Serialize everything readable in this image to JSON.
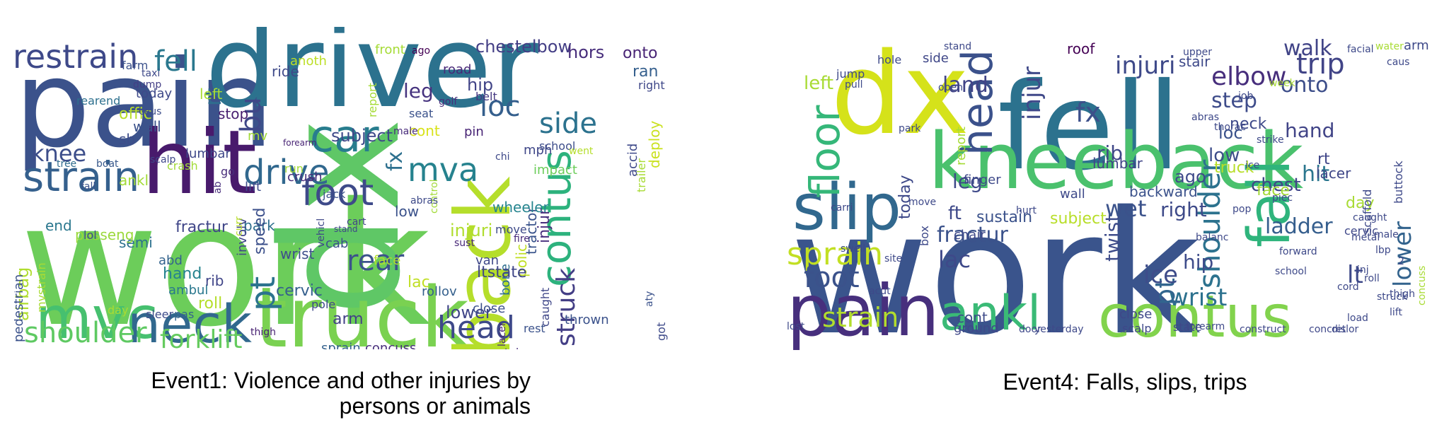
{
  "panels": [
    {
      "caption_line1": "Event1: Violence and other injuries by",
      "caption_line2": "persons or animals",
      "words": [
        {
          "t": "work",
          "c": "#6ccd5a"
        },
        {
          "t": "dx",
          "c": "#5fc766"
        },
        {
          "t": "pain",
          "c": "#3b528b"
        },
        {
          "t": "driver",
          "c": "#2c728e"
        },
        {
          "t": "hit",
          "c": "#481a6c"
        },
        {
          "t": "truck",
          "c": "#7ad151"
        },
        {
          "t": "back",
          "c": "#b5de2b"
        },
        {
          "t": "mvc",
          "c": "#46c06f"
        },
        {
          "t": "neck",
          "c": "#31688e"
        },
        {
          "t": "strain",
          "c": "#35608d"
        },
        {
          "t": "car",
          "c": "#287d8e"
        },
        {
          "t": "contus",
          "c": "#2db27d"
        },
        {
          "t": "restrain",
          "c": "#3e4989"
        },
        {
          "t": "fell",
          "c": "#2a788e"
        },
        {
          "t": "drive",
          "c": "#31688e"
        },
        {
          "t": "foot",
          "c": "#3e4a89"
        },
        {
          "t": "mva",
          "c": "#26828e"
        },
        {
          "t": "loc",
          "c": "#355f8d"
        },
        {
          "t": "side",
          "c": "#2c728e"
        },
        {
          "t": "head",
          "c": "#3e4989"
        },
        {
          "t": "shoulder",
          "c": "#5ec962"
        },
        {
          "t": "forklift",
          "c": "#65cb5e"
        },
        {
          "t": "pt",
          "c": "#2c738e"
        },
        {
          "t": "rear",
          "c": "#3b528b"
        },
        {
          "t": "struck",
          "c": "#433e85"
        },
        {
          "t": "knee",
          "c": "#3d4e8a"
        },
        {
          "t": "bu",
          "c": "#3f4788"
        },
        {
          "t": "rt",
          "c": "#2f6c8e"
        },
        {
          "t": "fx",
          "c": "#2d708e"
        },
        {
          "t": "leg",
          "c": "#46337f"
        },
        {
          "t": "hip",
          "c": "#414487"
        },
        {
          "t": "chestelbow",
          "c": "#433e85"
        },
        {
          "t": "hors",
          "c": "#472d7b"
        },
        {
          "t": "onto",
          "c": "#482475"
        },
        {
          "t": "front",
          "c": "#a5db36"
        },
        {
          "t": "ride",
          "c": "#3e4989"
        },
        {
          "t": "anoth",
          "c": "#bddf26"
        },
        {
          "t": "offic",
          "c": "#b8de29"
        },
        {
          "t": "wall",
          "c": "#3b528b"
        },
        {
          "t": "stop",
          "c": "#481f70"
        },
        {
          "t": "sb",
          "c": "#3d4d8a"
        },
        {
          "t": "mv",
          "c": "#a2da37"
        },
        {
          "t": "left",
          "c": "#a8db34"
        },
        {
          "t": "subject",
          "c": "#3e4989"
        },
        {
          "t": "cont",
          "c": "#d8e219"
        },
        {
          "t": "ankl",
          "c": "#a2da37"
        },
        {
          "t": "lumbar",
          "c": "#3f4889"
        },
        {
          "t": "fractur",
          "c": "#404688"
        },
        {
          "t": "park",
          "c": "#2e6f8e"
        },
        {
          "t": "semi",
          "c": "#2d718e"
        },
        {
          "t": "end",
          "c": "#2a778e"
        },
        {
          "t": "passeng",
          "c": "#9bd93c"
        },
        {
          "t": "injuri",
          "c": "#b0dd2f"
        },
        {
          "t": "low",
          "c": "#3b528b"
        },
        {
          "t": "lac",
          "c": "#c0df25"
        },
        {
          "t": "face",
          "c": "#b2dd2d"
        },
        {
          "t": "tractor",
          "c": "#3a548c"
        },
        {
          "t": "speed",
          "c": "#3c508b"
        },
        {
          "t": "wrist",
          "c": "#3d4e8a"
        },
        {
          "t": "cervic",
          "c": "#355f8d"
        },
        {
          "t": "arm",
          "c": "#424186"
        },
        {
          "t": "roll",
          "c": "#b5de2b"
        },
        {
          "t": "hand",
          "c": "#25838e"
        },
        {
          "t": "abd",
          "c": "#33638d"
        },
        {
          "t": "ambul",
          "c": "#2a788e"
        },
        {
          "t": "rib",
          "c": "#404588"
        },
        {
          "t": "lower",
          "c": "#404588"
        },
        {
          "t": "polic",
          "c": "#c0df25"
        },
        {
          "t": "sprain",
          "c": "#34618d"
        },
        {
          "t": "concuss",
          "c": "#472d7b"
        },
        {
          "t": "sustain",
          "c": "#472e7c"
        },
        {
          "t": "lacer",
          "c": "#482878"
        },
        {
          "t": "injur",
          "c": "#472f7d"
        },
        {
          "t": "thrown",
          "c": "#3b528b"
        },
        {
          "t": "bone",
          "c": "#2e6e8e"
        },
        {
          "t": "close",
          "c": "#3c4f8a"
        },
        {
          "t": "ltstate",
          "c": "#404688"
        },
        {
          "t": "van",
          "c": "#3f4889"
        },
        {
          "t": "airbag",
          "c": "#b0dd2f"
        },
        {
          "t": "deploy",
          "c": "#cae11f"
        },
        {
          "t": "ran",
          "c": "#355f8d"
        },
        {
          "t": "right",
          "c": "#3f4889"
        },
        {
          "t": "road",
          "c": "#482878"
        },
        {
          "t": "belt",
          "c": "#453882"
        },
        {
          "t": "pin",
          "c": "#482475"
        },
        {
          "t": "mph",
          "c": "#3f4788"
        },
        {
          "t": "school",
          "c": "#3d4d8a"
        },
        {
          "t": "impact",
          "c": "#6ccd5a"
        },
        {
          "t": "wheeler",
          "c": "#25848e"
        },
        {
          "t": "move",
          "c": "#3e4a89"
        },
        {
          "t": "fire",
          "c": "#472a7a"
        },
        {
          "t": "sust",
          "c": "#482878"
        },
        {
          "t": "lol",
          "c": "#3f4788"
        },
        {
          "t": "day",
          "c": "#a8db34"
        },
        {
          "t": "rollov",
          "c": "#35608d"
        },
        {
          "t": "pole",
          "c": "#3e4989"
        },
        {
          "t": "thigh",
          "c": "#482173"
        },
        {
          "t": "land",
          "c": "#b5de2b"
        },
        {
          "t": "cab",
          "c": "#3b528b"
        },
        {
          "t": "crash",
          "c": "#a2da37"
        },
        {
          "t": "go",
          "c": "#472c7a"
        },
        {
          "t": "lift",
          "c": "#3e4c8a"
        },
        {
          "t": "run",
          "c": "#a5db36"
        },
        {
          "t": "crush",
          "c": "#472d7b"
        },
        {
          "t": "vehicl",
          "c": "#3f4788"
        },
        {
          "t": "today",
          "c": "#3e4989"
        },
        {
          "t": "farm",
          "c": "#3b518b"
        },
        {
          "t": "taxi",
          "c": "#3e4989"
        },
        {
          "t": "dump",
          "c": "#433e85"
        },
        {
          "t": "caus",
          "c": "#3d4e8a"
        },
        {
          "t": "seat",
          "c": "#3b528b"
        },
        {
          "t": "golf",
          "c": "#472d7b"
        },
        {
          "t": "ago",
          "c": "#440154"
        },
        {
          "t": "report",
          "c": "#a5db36"
        },
        {
          "t": "forearm",
          "c": "#482475"
        },
        {
          "t": "male",
          "c": "#472a7a"
        },
        {
          "t": "control",
          "c": "#a2da37"
        },
        {
          "t": "abras",
          "c": "#3e4a89"
        },
        {
          "t": "cart",
          "c": "#414487"
        },
        {
          "t": "stand",
          "c": "#3f4788"
        },
        {
          "t": "sleer",
          "c": "#3e4c8a"
        },
        {
          "t": "pas",
          "c": "#33638d"
        },
        {
          "t": "rest",
          "c": "#3b528b"
        },
        {
          "t": "caught",
          "c": "#3f4788"
        },
        {
          "t": "ab",
          "c": "#472d7b"
        },
        {
          "t": "boat",
          "c": "#38598c"
        },
        {
          "t": "scalp",
          "c": "#3f4889"
        },
        {
          "t": "tree",
          "c": "#2f6b8e"
        },
        {
          "t": "fall",
          "c": "#3b528b"
        },
        {
          "t": "jack",
          "c": "#3b528b"
        },
        {
          "t": "chi",
          "c": "#3e4989"
        },
        {
          "t": "went",
          "c": "#b5de2b"
        },
        {
          "t": "accid",
          "c": "#3e4989"
        },
        {
          "t": "trailer",
          "c": "#a8db34"
        },
        {
          "t": "got",
          "c": "#3e4a89"
        },
        {
          "t": "aty",
          "c": "#3b528b"
        },
        {
          "t": "mvstrain",
          "c": "#a8db34"
        },
        {
          "t": "pedestrian",
          "c": "#3b528b"
        },
        {
          "t": "involv",
          "c": "#404588"
        },
        {
          "t": "curr",
          "c": "#b8de29"
        },
        {
          "t": "rearend",
          "c": "#2d708e"
        },
        {
          "t": "headach",
          "c": "#3e4989"
        },
        {
          "t": "2",
          "c": "#3f4889"
        }
      ]
    },
    {
      "caption_line1": "Event4: Falls, slips, trips",
      "caption_line2": "",
      "words": [
        {
          "t": "work",
          "c": "#3a548c"
        },
        {
          "t": "fell",
          "c": "#2c728e"
        },
        {
          "t": "dx",
          "c": "#d5e21a"
        },
        {
          "t": "kneeback",
          "c": "#4ac16d"
        },
        {
          "t": "pain",
          "c": "#472f7d"
        },
        {
          "t": "slip",
          "c": "#31688e"
        },
        {
          "t": "head",
          "c": "#3b518b"
        },
        {
          "t": "contus",
          "c": "#82d34d"
        },
        {
          "t": "ankl",
          "c": "#3aba76"
        },
        {
          "t": "fall",
          "c": "#2fb47c"
        },
        {
          "t": "floor",
          "c": "#35b779"
        },
        {
          "t": "sprain",
          "c": "#c2df23"
        },
        {
          "t": "foot",
          "c": "#3b528b"
        },
        {
          "t": "strain",
          "c": "#b2dd2d"
        },
        {
          "t": "shoulder",
          "c": "#2c728e"
        },
        {
          "t": "trip",
          "c": "#414487"
        },
        {
          "t": "elbow",
          "c": "#472e7c"
        },
        {
          "t": "injuri",
          "c": "#3e4989"
        },
        {
          "t": "injur",
          "c": "#3f4889"
        },
        {
          "t": "land",
          "c": "#414487"
        },
        {
          "t": "step",
          "c": "#3e4c8a"
        },
        {
          "t": "walk",
          "c": "#414487"
        },
        {
          "t": "fx",
          "c": "#3c4f8a"
        },
        {
          "t": "rib",
          "c": "#3f4788"
        },
        {
          "t": "loc",
          "c": "#3b528b"
        },
        {
          "t": "low",
          "c": "#3d4d8a"
        },
        {
          "t": "truck",
          "c": "#b8de29"
        },
        {
          "t": "hand",
          "c": "#414487"
        },
        {
          "t": "onto",
          "c": "#3d4e8a"
        },
        {
          "t": "ladder",
          "c": "#355e8d"
        },
        {
          "t": "lower",
          "c": "#33638d"
        },
        {
          "t": "lt",
          "c": "#3e4989"
        },
        {
          "t": "hit",
          "c": "#2a768e"
        },
        {
          "t": "chest",
          "c": "#404588"
        },
        {
          "t": "wrist",
          "c": "#2c718e"
        },
        {
          "t": "twist",
          "c": "#3e4c8a"
        },
        {
          "t": "wet",
          "c": "#3b528b"
        },
        {
          "t": "right",
          "c": "#3e4a89"
        },
        {
          "t": "hip",
          "c": "#3e4c8a"
        },
        {
          "t": "pt",
          "c": "#32658e"
        },
        {
          "t": "ice",
          "c": "#3e4c8a"
        },
        {
          "t": "lac",
          "c": "#3e4989"
        },
        {
          "t": "fractur",
          "c": "#3b528b"
        },
        {
          "t": "sustain",
          "c": "#3b528b"
        },
        {
          "t": "subject",
          "c": "#b8de29"
        },
        {
          "t": "ft",
          "c": "#3e4989"
        },
        {
          "t": "today",
          "c": "#3e4989"
        },
        {
          "t": "leg",
          "c": "#3e4989"
        },
        {
          "t": "left",
          "c": "#a8db34"
        },
        {
          "t": "side",
          "c": "#3f4788"
        },
        {
          "t": "roof",
          "c": "#440154"
        },
        {
          "t": "stair",
          "c": "#3e4989"
        },
        {
          "t": "neck",
          "c": "#3e4989"
        },
        {
          "t": "lumbar",
          "c": "#414487"
        },
        {
          "t": "rt",
          "c": "#404688"
        },
        {
          "t": "face",
          "c": "#a2da37"
        },
        {
          "t": "lacer",
          "c": "#3f4788"
        },
        {
          "t": "backward",
          "c": "#3b528b"
        },
        {
          "t": "wall",
          "c": "#3e4989"
        },
        {
          "t": "report",
          "c": "#a5db36"
        },
        {
          "t": "finger",
          "c": "#3e4989"
        },
        {
          "t": "chair",
          "c": "#3e4989"
        },
        {
          "t": "cont",
          "c": "#3e4a89"
        },
        {
          "t": "close",
          "c": "#3f4889"
        },
        {
          "t": "ground",
          "c": "#3f4889"
        },
        {
          "t": "state",
          "c": "#3f4889"
        },
        {
          "t": "scalp",
          "c": "#3f4889"
        },
        {
          "t": "construct",
          "c": "#3f4889"
        },
        {
          "t": "concret",
          "c": "#3f4889"
        },
        {
          "t": "cervic",
          "c": "#3f4889"
        },
        {
          "t": "day",
          "c": "#a8db34"
        },
        {
          "t": "caught",
          "c": "#3e4989"
        },
        {
          "t": "metal",
          "c": "#3e4989"
        },
        {
          "t": "ago",
          "c": "#3e4989"
        },
        {
          "t": "inj",
          "c": "#3e4989"
        },
        {
          "t": "roll",
          "c": "#3e4989"
        },
        {
          "t": "struck",
          "c": "#3e4989"
        },
        {
          "t": "thigh",
          "c": "#3e4989"
        },
        {
          "t": "lift",
          "c": "#3e4989"
        },
        {
          "t": "scaffold",
          "c": "#3e4989"
        },
        {
          "t": "buttock",
          "c": "#3e4989"
        },
        {
          "t": "concuss",
          "c": "#a8db34"
        },
        {
          "t": "male",
          "c": "#3e4989"
        },
        {
          "t": "lbp",
          "c": "#3e4989"
        },
        {
          "t": "arm",
          "c": "#3e4989"
        },
        {
          "t": "caus",
          "c": "#3e4989"
        },
        {
          "t": "water",
          "c": "#a8db34"
        },
        {
          "t": "job",
          "c": "#3e4989"
        },
        {
          "t": "move",
          "c": "#3e4989"
        },
        {
          "t": "carri",
          "c": "#3e4989"
        },
        {
          "t": "swell",
          "c": "#3e4989"
        },
        {
          "t": "box",
          "c": "#3e4989"
        },
        {
          "t": "site",
          "c": "#3e4989"
        },
        {
          "t": "acut",
          "c": "#3e4989"
        },
        {
          "t": "door",
          "c": "#3e4989"
        },
        {
          "t": "forearm",
          "c": "#3e4989"
        },
        {
          "t": "dislor",
          "c": "#3e4989"
        },
        {
          "t": "yesterday",
          "c": "#3e4989"
        },
        {
          "t": "school",
          "c": "#3e4989"
        },
        {
          "t": "forward",
          "c": "#3e4989"
        },
        {
          "t": "balanc",
          "c": "#3e4989"
        },
        {
          "t": "pop",
          "c": "#3e4989"
        },
        {
          "t": "piec",
          "c": "#3e4989"
        },
        {
          "t": "hurt",
          "c": "#3e4989"
        },
        {
          "t": "park",
          "c": "#3e4989"
        },
        {
          "t": "upper",
          "c": "#3e4989"
        },
        {
          "t": "thorac",
          "c": "#3e4989"
        },
        {
          "t": "abras",
          "c": "#3e4989"
        },
        {
          "t": "strike",
          "c": "#3e4989"
        },
        {
          "t": "week",
          "c": "#a8db34"
        },
        {
          "t": "facial",
          "c": "#3e4989"
        },
        {
          "t": "hole",
          "c": "#3e4989"
        },
        {
          "t": "stand",
          "c": "#3e4989"
        },
        {
          "t": "jump",
          "c": "#3e4989"
        },
        {
          "t": "pull",
          "c": "#3e4989"
        },
        {
          "t": "open",
          "c": "#3e4989"
        },
        {
          "t": "lost",
          "c": "#3e4989"
        },
        {
          "t": "ice",
          "c": "#3e4989"
        },
        {
          "t": "load",
          "c": "#3e4989"
        },
        {
          "t": "cord",
          "c": "#3e4989"
        },
        {
          "t": "2",
          "c": "#3e4989"
        }
      ]
    }
  ]
}
